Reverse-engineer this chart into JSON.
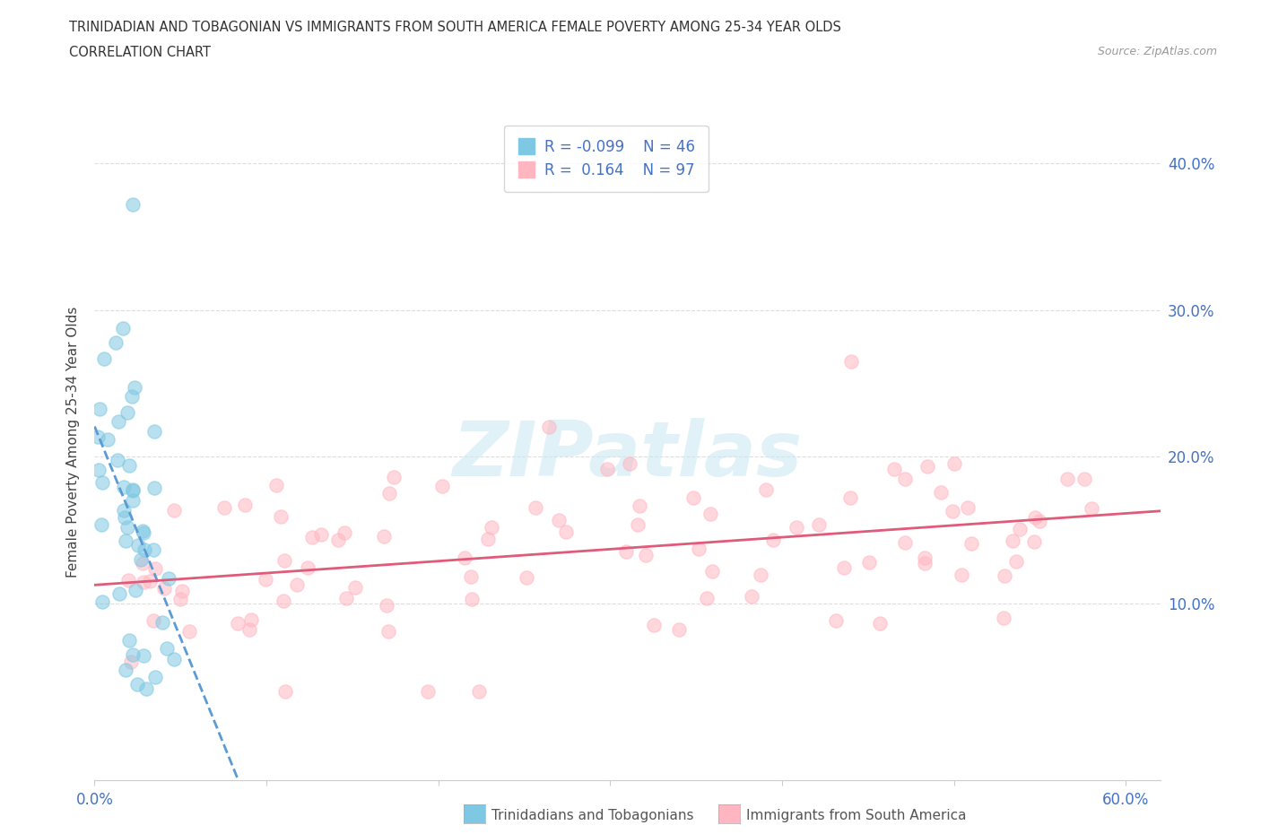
{
  "title_line1": "TRINIDADIAN AND TOBAGONIAN VS IMMIGRANTS FROM SOUTH AMERICA FEMALE POVERTY AMONG 25-34 YEAR OLDS",
  "title_line2": "CORRELATION CHART",
  "source": "Source: ZipAtlas.com",
  "ylabel": "Female Poverty Among 25-34 Year Olds",
  "xlim": [
    0.0,
    0.62
  ],
  "ylim": [
    -0.02,
    0.44
  ],
  "color_blue": "#7ec8e3",
  "color_pink": "#ffb6c1",
  "color_blue_line": "#5b9bd5",
  "color_pink_line": "#e05a7a",
  "watermark_color": "#cce8f4",
  "watermark_alpha": 0.6,
  "scatter_size": 120,
  "scatter_alpha": 0.55,
  "legend_text_color": "#4472c4",
  "tick_color": "#4472c4",
  "bottom_label_color": "#555555",
  "grid_color": "#dddddd",
  "spine_color": "#cccccc"
}
